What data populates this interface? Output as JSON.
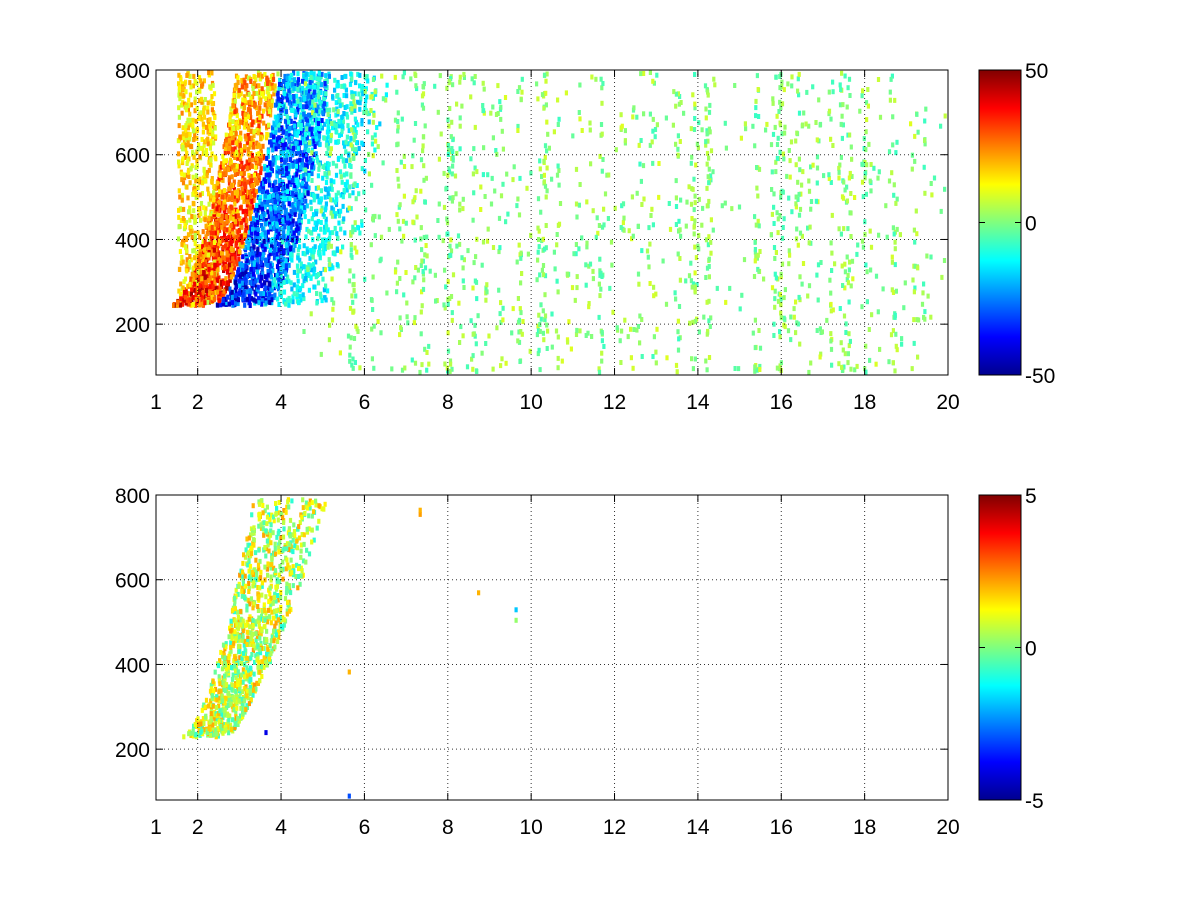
{
  "colors": {
    "background": "#ffffff",
    "axis": "#000000",
    "colormap": "jet"
  },
  "chart_data": [
    {
      "type": "heatmap",
      "title": "",
      "xlabel": "",
      "ylabel": "",
      "xlim": [
        1,
        20
      ],
      "ylim": [
        80,
        800
      ],
      "grid": true,
      "xticks": [
        1,
        2,
        4,
        6,
        8,
        10,
        12,
        14,
        16,
        18,
        20
      ],
      "xtick_labels": [
        "1",
        "2",
        "4",
        "6",
        "8",
        "10",
        "12",
        "14",
        "16",
        "18",
        "20"
      ],
      "yticks": [
        200,
        400,
        600,
        800
      ],
      "ytick_labels": [
        "200",
        "400",
        "600",
        "800"
      ],
      "colorbar": {
        "range": [
          -50,
          50
        ],
        "ticks": [
          -50,
          0,
          50
        ],
        "tick_labels": [
          "-50",
          "0",
          "50"
        ]
      },
      "features": [
        {
          "name": "positive band",
          "x_range": [
            1.5,
            3.5
          ],
          "y_start": 270,
          "y_end": 800,
          "value": 40
        },
        {
          "name": "negative band",
          "x_range": [
            2.8,
            4.8
          ],
          "y_start": 250,
          "y_end": 800,
          "value": -40
        },
        {
          "name": "sparse noise",
          "x_range": [
            1,
            20
          ],
          "value_range": [
            -10,
            10
          ]
        }
      ]
    },
    {
      "type": "heatmap",
      "title": "",
      "xlabel": "",
      "ylabel": "",
      "xlim": [
        1,
        20
      ],
      "ylim": [
        80,
        800
      ],
      "grid": true,
      "xticks": [
        1,
        2,
        4,
        6,
        8,
        10,
        12,
        14,
        16,
        18,
        20
      ],
      "xtick_labels": [
        "1",
        "2",
        "4",
        "6",
        "8",
        "10",
        "12",
        "14",
        "16",
        "18",
        "20"
      ],
      "yticks": [
        200,
        400,
        600,
        800
      ],
      "ytick_labels": [
        "200",
        "400",
        "600",
        "800"
      ],
      "colorbar": {
        "range": [
          -5,
          5
        ],
        "ticks": [
          -5,
          0,
          5
        ],
        "tick_labels": [
          "-5",
          "0",
          "5"
        ]
      },
      "features": [
        {
          "name": "curved band",
          "x_range": [
            1.5,
            5.5
          ],
          "y_start": 270,
          "y_end": 800,
          "value_range": [
            -1,
            2
          ]
        },
        {
          "name": "isolated points",
          "points": [
            [
              7.3,
              760,
              2
            ],
            [
              8.7,
              575,
              2
            ],
            [
              9.6,
              510,
              0
            ]
          ]
        }
      ]
    }
  ]
}
